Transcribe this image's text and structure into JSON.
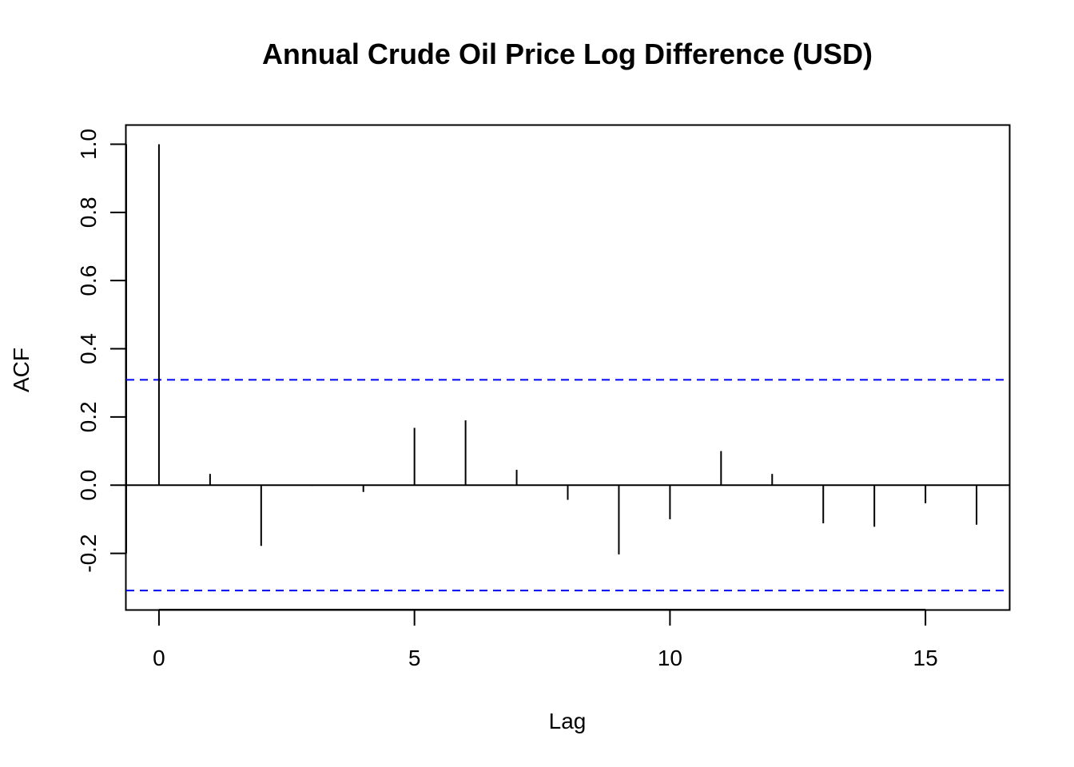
{
  "chart_data": {
    "type": "bar",
    "subtype": "acf-spike",
    "title": "Annual Crude Oil Price Log Difference (USD)",
    "xlabel": "Lag",
    "ylabel": "ACF",
    "xlim": [
      -0.64,
      16.64
    ],
    "ylim": [
      -0.365,
      1.055
    ],
    "x_ticks": [
      0,
      5,
      10,
      15
    ],
    "x_tick_labels": [
      "0",
      "5",
      "10",
      "15"
    ],
    "y_ticks": [
      -0.2,
      0.0,
      0.2,
      0.4,
      0.6,
      0.8,
      1.0
    ],
    "y_tick_labels": [
      "-0.2",
      "0.0",
      "0.2",
      "0.4",
      "0.6",
      "0.8",
      "1.0"
    ],
    "lags": [
      0,
      1,
      2,
      3,
      4,
      5,
      6,
      7,
      8,
      9,
      10,
      11,
      12,
      13,
      14,
      15,
      16
    ],
    "values": [
      1.0,
      0.033,
      -0.178,
      -0.002,
      -0.02,
      0.168,
      0.19,
      0.045,
      -0.043,
      -0.203,
      -0.1,
      0.1,
      0.033,
      -0.112,
      -0.122,
      -0.053,
      -0.116
    ],
    "confidence_bounds": [
      0.309,
      -0.309
    ],
    "confidence_line_color": "#0000ff",
    "spike_color": "#000000",
    "zero_line": true,
    "grid": false
  }
}
